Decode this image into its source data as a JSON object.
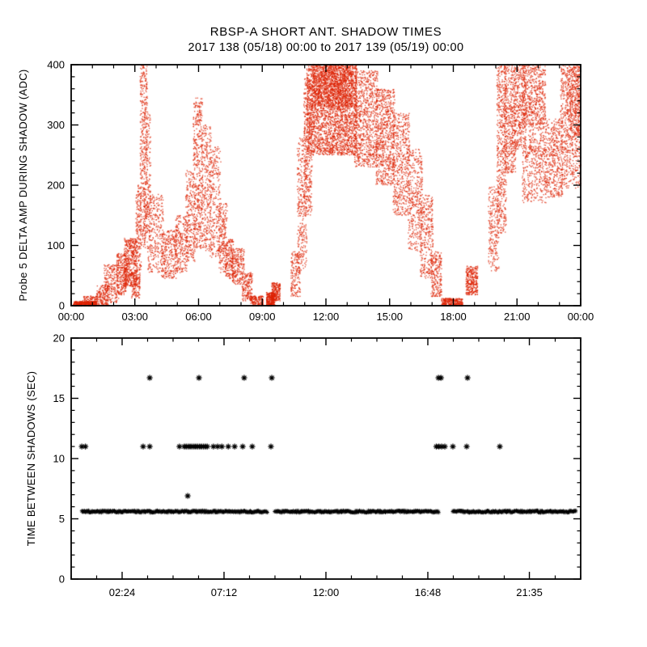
{
  "header": {
    "title": "RBSP-A SHORT ANT. SHADOW TIMES",
    "subtitle": "2017 138 (05/18) 00:00 to 2017 139 (05/19) 00:00"
  },
  "colors": {
    "background": "#ffffff",
    "axis": "#000000",
    "top_points": "#dd2200",
    "bottom_points": "#000000"
  },
  "chart_data": [
    {
      "type": "scatter",
      "name": "probe5-delta-amp-during-shadow",
      "title": "",
      "xlabel": "",
      "ylabel": "Probe 5 DELTA AMP DURING SHADOW (ADC)",
      "marker": "dot",
      "point_color": "#dd2200",
      "grid": false,
      "xlim_hours": [
        0,
        24
      ],
      "ylim": [
        0,
        400
      ],
      "x_ticks": [
        {
          "h": 0,
          "label": "00:00"
        },
        {
          "h": 3,
          "label": "03:00"
        },
        {
          "h": 6,
          "label": "06:00"
        },
        {
          "h": 9,
          "label": "09:00"
        },
        {
          "h": 12,
          "label": "12:00"
        },
        {
          "h": 15,
          "label": "15:00"
        },
        {
          "h": 18,
          "label": "18:00"
        },
        {
          "h": 21,
          "label": "21:00"
        },
        {
          "h": 24,
          "label": "00:00"
        }
      ],
      "y_ticks": [
        {
          "v": 0,
          "label": "0"
        },
        {
          "v": 100,
          "label": "100"
        },
        {
          "v": 200,
          "label": "200"
        },
        {
          "v": 300,
          "label": "300"
        },
        {
          "v": 400,
          "label": "400"
        }
      ],
      "x_minor_hours": 1,
      "y_minor": 20,
      "clusters_format": [
        "t_start_h",
        "t_end_h",
        "adc_min",
        "adc_max",
        "n_points"
      ],
      "clusters": [
        [
          0.1,
          1.2,
          0,
          7,
          380
        ],
        [
          0.55,
          1.25,
          4,
          16,
          90
        ],
        [
          1.2,
          1.75,
          0,
          34,
          170
        ],
        [
          1.55,
          2.25,
          5,
          68,
          230
        ],
        [
          2.15,
          2.6,
          18,
          88,
          260
        ],
        [
          2.5,
          3.1,
          32,
          112,
          470
        ],
        [
          2.85,
          3.25,
          12,
          55,
          130
        ],
        [
          3.05,
          3.3,
          55,
          200,
          170
        ],
        [
          3.25,
          3.6,
          95,
          400,
          450
        ],
        [
          3.45,
          3.75,
          120,
          320,
          160
        ],
        [
          3.6,
          4.35,
          55,
          185,
          310
        ],
        [
          4.25,
          5.0,
          45,
          125,
          290
        ],
        [
          4.9,
          5.5,
          55,
          150,
          250
        ],
        [
          5.4,
          5.85,
          70,
          225,
          230
        ],
        [
          5.75,
          6.2,
          95,
          345,
          460
        ],
        [
          6.15,
          6.6,
          90,
          300,
          310
        ],
        [
          6.55,
          7.05,
          80,
          265,
          270
        ],
        [
          6.95,
          7.35,
          55,
          170,
          210
        ],
        [
          7.25,
          7.65,
          45,
          110,
          180
        ],
        [
          7.55,
          8.15,
          35,
          95,
          230
        ],
        [
          8.05,
          8.55,
          8,
          55,
          180
        ],
        [
          8.45,
          9.05,
          0,
          16,
          150
        ],
        [
          9.2,
          9.6,
          0,
          22,
          280
        ],
        [
          9.45,
          9.85,
          8,
          38,
          210
        ],
        [
          10.35,
          10.8,
          15,
          90,
          170
        ],
        [
          10.65,
          11.1,
          55,
          280,
          320
        ],
        [
          10.95,
          11.35,
          150,
          380,
          370
        ],
        [
          11.1,
          13.45,
          250,
          400,
          2700
        ],
        [
          11.35,
          13.25,
          330,
          400,
          950
        ],
        [
          13.35,
          14.45,
          230,
          390,
          850
        ],
        [
          14.35,
          15.25,
          200,
          360,
          720
        ],
        [
          15.15,
          15.95,
          150,
          320,
          520
        ],
        [
          15.85,
          16.55,
          90,
          260,
          400
        ],
        [
          16.45,
          17.05,
          45,
          185,
          310
        ],
        [
          16.95,
          17.45,
          15,
          90,
          230
        ],
        [
          17.45,
          18.45,
          0,
          12,
          280
        ],
        [
          18.6,
          19.15,
          18,
          66,
          320
        ],
        [
          19.65,
          20.15,
          55,
          200,
          230
        ],
        [
          20.05,
          20.5,
          120,
          400,
          520
        ],
        [
          20.4,
          20.95,
          220,
          400,
          470
        ],
        [
          20.85,
          21.45,
          260,
          400,
          390
        ],
        [
          21.25,
          22.35,
          300,
          400,
          540
        ],
        [
          21.25,
          22.4,
          170,
          265,
          340
        ],
        [
          21.55,
          22.35,
          255,
          305,
          130
        ],
        [
          22.35,
          23.15,
          180,
          310,
          430
        ],
        [
          23.05,
          24.0,
          195,
          400,
          680
        ],
        [
          23.35,
          24.0,
          280,
          400,
          310
        ]
      ]
    },
    {
      "type": "scatter",
      "name": "time-between-shadows",
      "title": "",
      "xlabel": "",
      "ylabel": "TIME BETWEEN SHADOWS (SEC)",
      "marker": "asterisk",
      "point_color": "#000000",
      "grid": false,
      "xlim_hours": [
        0,
        24
      ],
      "ylim": [
        0,
        20
      ],
      "x_ticks": [
        {
          "h": 2.4,
          "label": "02:24"
        },
        {
          "h": 7.2,
          "label": "07:12"
        },
        {
          "h": 12,
          "label": "12:00"
        },
        {
          "h": 16.8,
          "label": "16:48"
        },
        {
          "h": 21.583,
          "label": "21:35"
        }
      ],
      "y_ticks": [
        {
          "v": 0,
          "label": "0"
        },
        {
          "v": 5,
          "label": "5"
        },
        {
          "v": 10,
          "label": "10"
        },
        {
          "v": 15,
          "label": "15"
        },
        {
          "v": 20,
          "label": "20"
        }
      ],
      "x_minor_hours": 1.2,
      "y_minor": 1,
      "band": {
        "y_sec": 5.6,
        "segments_hours": [
          [
            0.5,
            9.22
          ],
          [
            9.6,
            17.32
          ],
          [
            17.98,
            23.8
          ]
        ]
      },
      "point_rows": [
        {
          "y_sec": 11.0,
          "x_hours": [
            0.5,
            0.67,
            3.39,
            3.7,
            5.1,
            5.33,
            5.42,
            5.51,
            5.6,
            5.69,
            5.78,
            5.87,
            5.96,
            6.05,
            6.14,
            6.23,
            6.32,
            6.41,
            6.7,
            6.9,
            7.1,
            7.4,
            7.7,
            8.08,
            8.53,
            9.41,
            17.2,
            17.32,
            17.45,
            17.6,
            17.98,
            18.63,
            20.19
          ]
        },
        {
          "y_sec": 16.7,
          "x_hours": [
            3.7,
            6.02,
            8.15,
            9.45,
            17.3,
            17.42,
            18.67
          ]
        },
        {
          "y_sec": 6.9,
          "x_hours": [
            5.49
          ]
        }
      ]
    }
  ]
}
